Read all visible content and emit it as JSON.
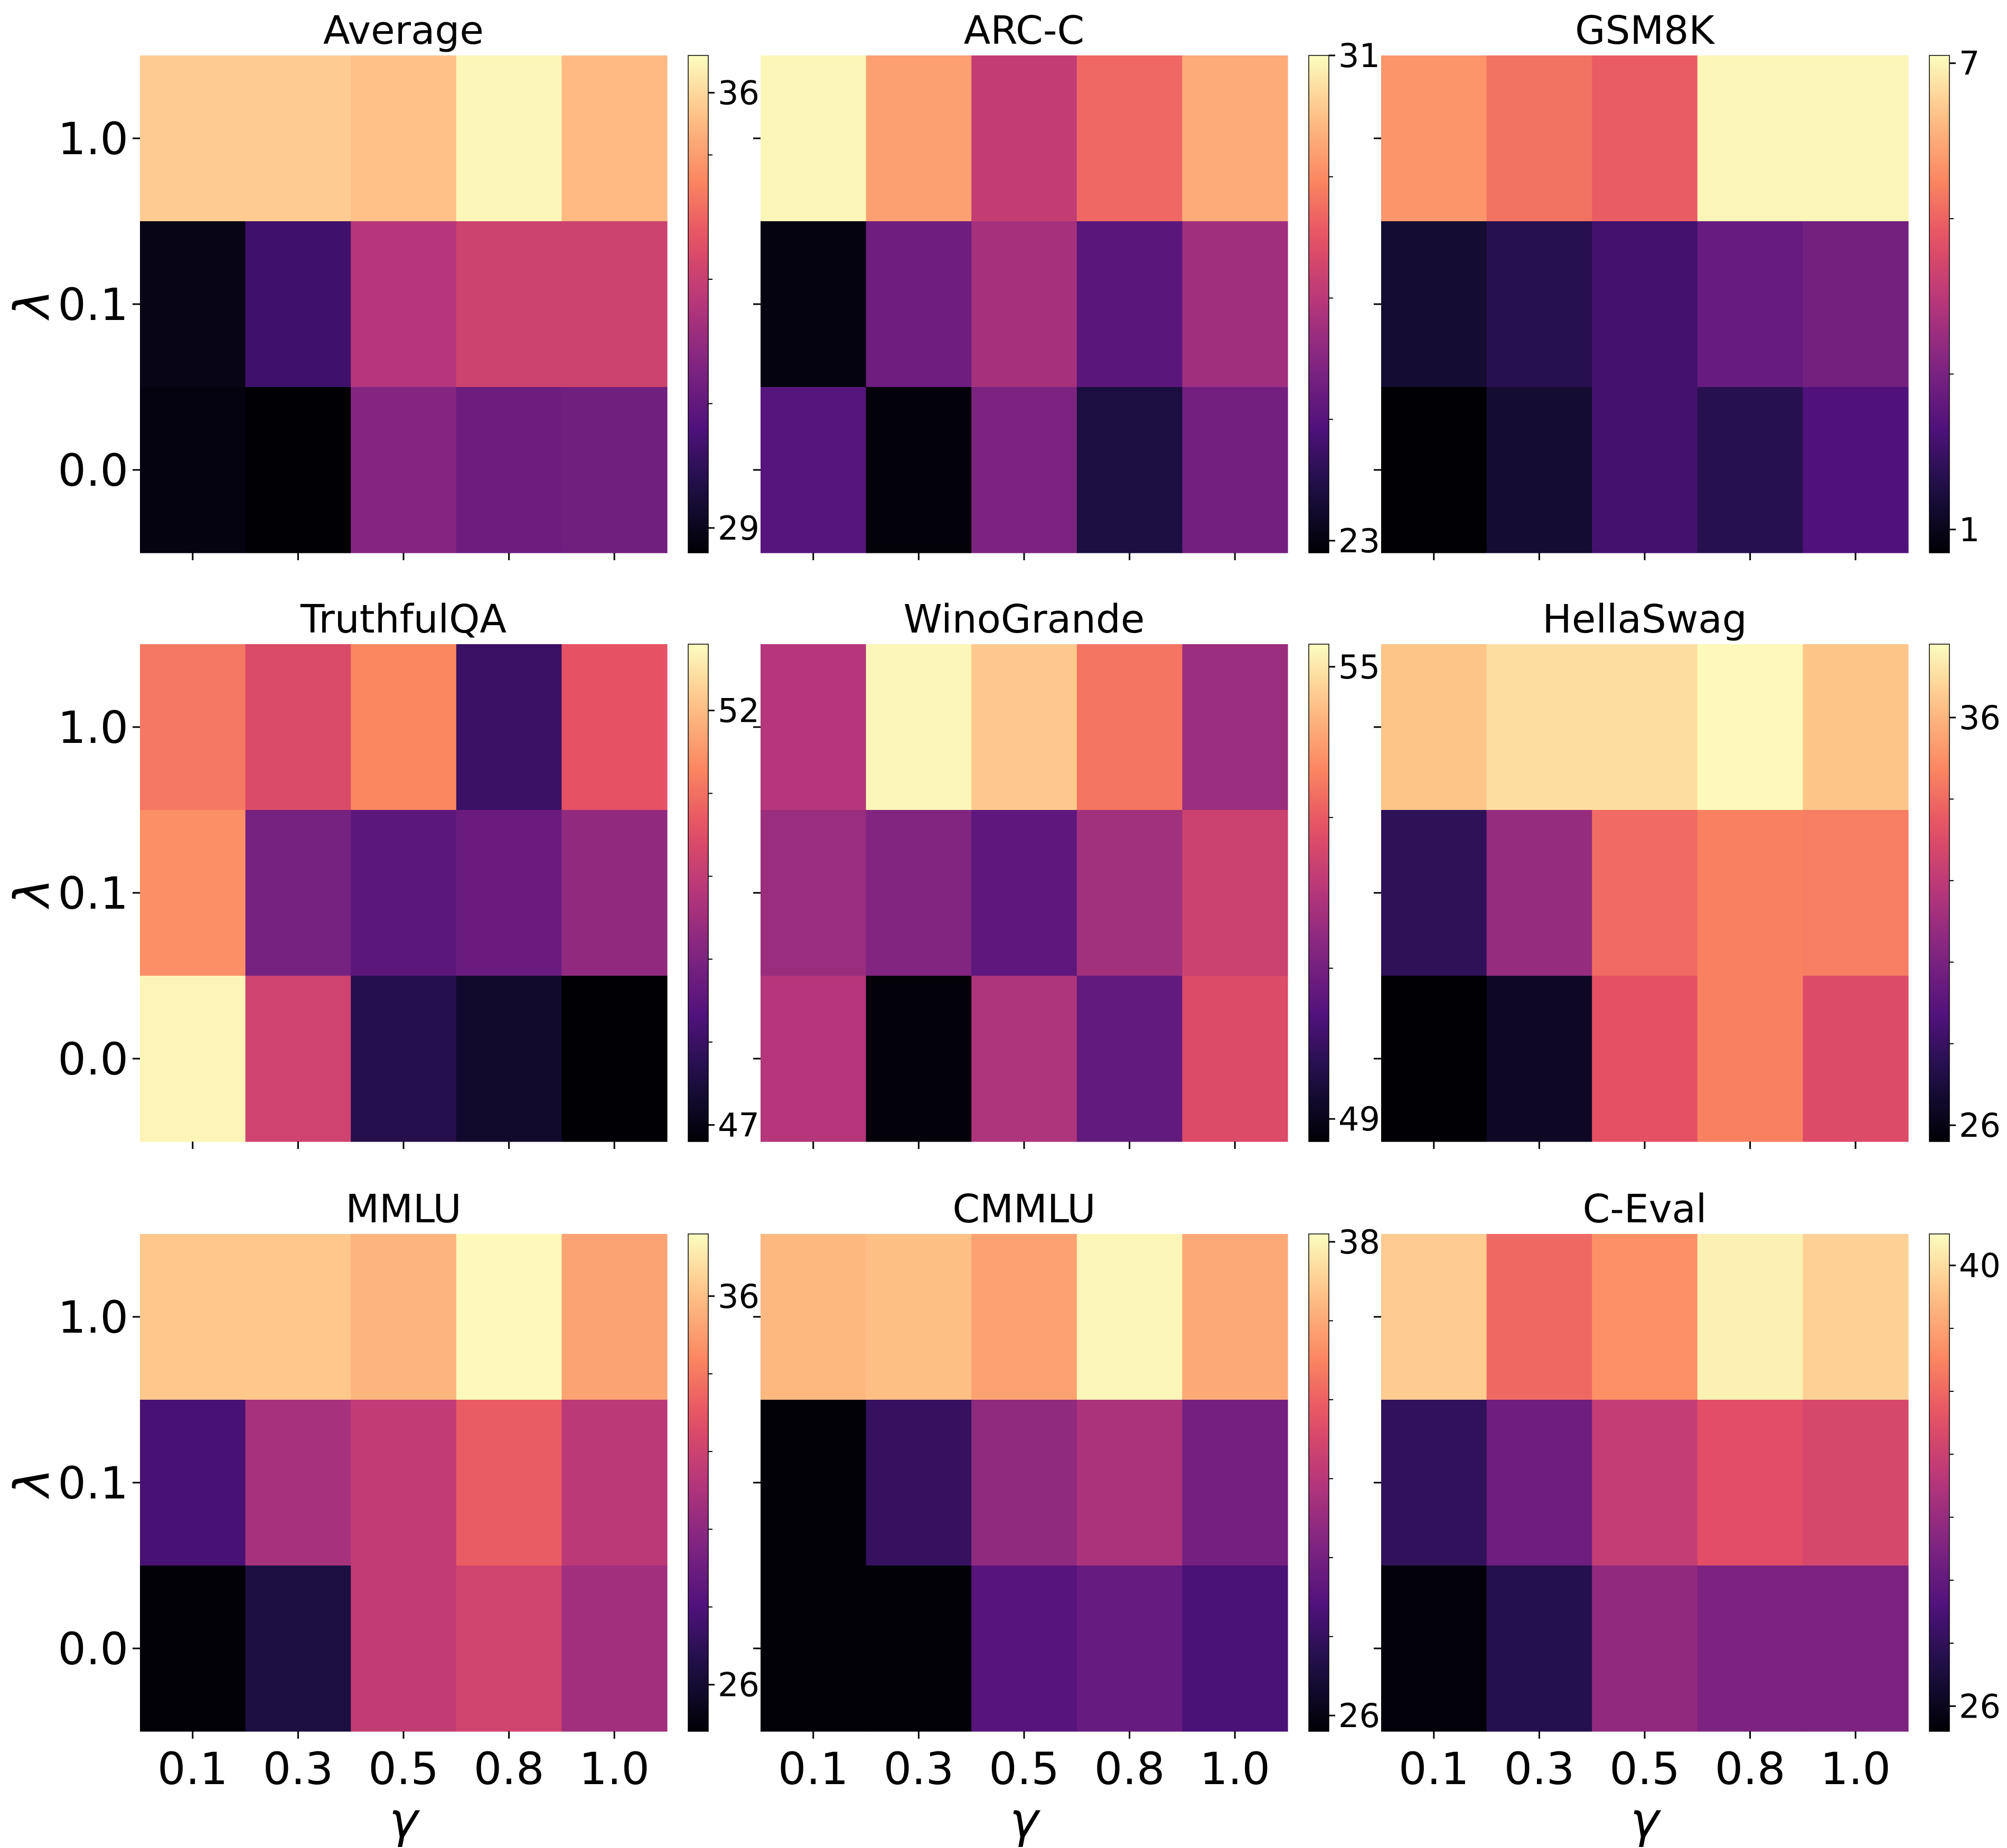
{
  "chart_data": {
    "type": "heatmap",
    "x_label": "γ",
    "y_label": "λ",
    "x_ticks": [
      "0.1",
      "0.3",
      "0.5",
      "0.8",
      "1.0"
    ],
    "y_ticks": [
      "1.0",
      "0.1",
      "0.0"
    ],
    "colormap": "magma",
    "panels": [
      {
        "title": "Average",
        "vmin": 28.6,
        "vmax": 36.6,
        "cbar_ticks": [
          29,
          36
        ],
        "values": [
          [
            35.8,
            35.8,
            35.6,
            36.5,
            35.5
          ],
          [
            28.9,
            30.3,
            32.6,
            33.1,
            33.1
          ],
          [
            28.8,
            28.6,
            31.7,
            31.2,
            31.3
          ]
        ]
      },
      {
        "title": "ARC-C",
        "vmin": 22.8,
        "vmax": 31.0,
        "cbar_ticks": [
          23,
          31
        ],
        "values": [
          [
            30.9,
            29.4,
            27.2,
            28.4,
            29.6
          ],
          [
            23.0,
            25.5,
            26.6,
            25.1,
            26.5
          ],
          [
            25.0,
            22.9,
            25.8,
            23.8,
            25.6
          ]
        ]
      },
      {
        "title": "GSM8K",
        "vmin": 0.7,
        "vmax": 7.1,
        "cbar_ticks": [
          1,
          7
        ],
        "values": [
          [
            5.7,
            5.2,
            4.9,
            7.0,
            7.0
          ],
          [
            1.3,
            1.7,
            2.1,
            2.7,
            2.9
          ],
          [
            0.7,
            1.3,
            2.1,
            1.7,
            2.3
          ]
        ]
      },
      {
        "title": "TruthfulQA",
        "vmin": 46.8,
        "vmax": 52.8,
        "cbar_ticks": [
          47,
          52
        ],
        "values": [
          [
            51.1,
            50.4,
            51.3,
            48.0,
            50.6
          ],
          [
            51.4,
            48.9,
            48.5,
            48.7,
            49.3
          ],
          [
            52.7,
            50.2,
            47.7,
            47.3,
            46.8
          ]
        ]
      },
      {
        "title": "WinoGrande",
        "vmin": 48.7,
        "vmax": 55.3,
        "cbar_ticks": [
          49,
          55
        ],
        "values": [
          [
            52.0,
            55.2,
            54.6,
            53.4,
            51.6
          ],
          [
            51.6,
            51.2,
            50.6,
            51.7,
            52.4
          ],
          [
            52.0,
            48.8,
            51.9,
            50.7,
            52.7
          ]
        ]
      },
      {
        "title": "HellaSwag",
        "vmin": 25.6,
        "vmax": 37.8,
        "cbar_ticks": [
          26,
          36
        ],
        "values": [
          [
            36.4,
            37.0,
            37.0,
            37.7,
            36.4
          ],
          [
            27.7,
            30.8,
            34.0,
            34.6,
            34.5
          ],
          [
            25.6,
            26.4,
            33.3,
            34.6,
            33.0
          ]
        ]
      },
      {
        "title": "MMLU",
        "vmin": 24.8,
        "vmax": 37.6,
        "cbar_ticks": [
          26,
          36
        ],
        "values": [
          [
            36.2,
            36.2,
            35.7,
            37.5,
            35.2
          ],
          [
            27.8,
            30.8,
            31.6,
            33.2,
            31.4
          ],
          [
            24.9,
            26.4,
            31.6,
            32.1,
            30.6
          ]
        ]
      },
      {
        "title": "CMMLU",
        "vmin": 25.6,
        "vmax": 38.2,
        "cbar_ticks": [
          26,
          38
        ],
        "values": [
          [
            36.4,
            36.6,
            35.8,
            38.0,
            36.0
          ],
          [
            25.7,
            28.0,
            30.8,
            31.6,
            30.0
          ],
          [
            25.7,
            25.7,
            29.0,
            29.5,
            28.6
          ]
        ]
      },
      {
        "title": "C-Eval",
        "vmin": 25.2,
        "vmax": 41.0,
        "cbar_ticks": [
          26,
          40
        ],
        "values": [
          [
            39.4,
            36.0,
            37.4,
            40.6,
            39.6
          ],
          [
            28.0,
            30.4,
            33.7,
            35.0,
            34.5
          ],
          [
            25.4,
            27.6,
            31.8,
            31.0,
            31.0
          ]
        ]
      }
    ]
  }
}
